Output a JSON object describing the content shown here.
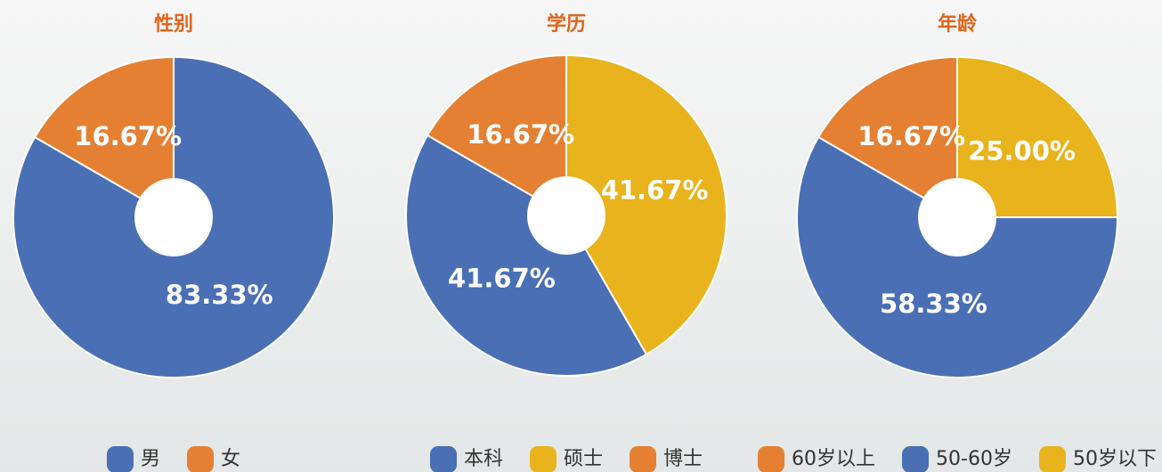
{
  "chart_data": [
    {
      "type": "pie",
      "title": "性别",
      "categories": [
        "男",
        "女"
      ],
      "values": [
        83.33,
        16.67
      ],
      "value_labels": [
        "83.33%",
        "16.67%"
      ],
      "colors": [
        "#4a6fb5",
        "#e58033"
      ],
      "startangle": 300,
      "counterclock": true
    },
    {
      "type": "pie",
      "title": "学历",
      "categories": [
        "本科",
        "硕士",
        "博士"
      ],
      "values": [
        41.67,
        41.67,
        16.67
      ],
      "value_labels": [
        "41.67%",
        "41.67%",
        "16.67%"
      ],
      "colors": [
        "#4a6fb5",
        "#e8b31c",
        "#e58033"
      ],
      "startangle": 300,
      "counterclock": true
    },
    {
      "type": "pie",
      "title": "年龄",
      "categories": [
        "60岁以上",
        "50-60岁",
        "50岁以下"
      ],
      "values": [
        16.67,
        58.33,
        25.0
      ],
      "value_labels": [
        "16.67%",
        "58.33%",
        "25.00%"
      ],
      "colors": [
        "#e58033",
        "#4a6fb5",
        "#e8b31c"
      ],
      "startangle": 0,
      "counterclock": true
    }
  ]
}
